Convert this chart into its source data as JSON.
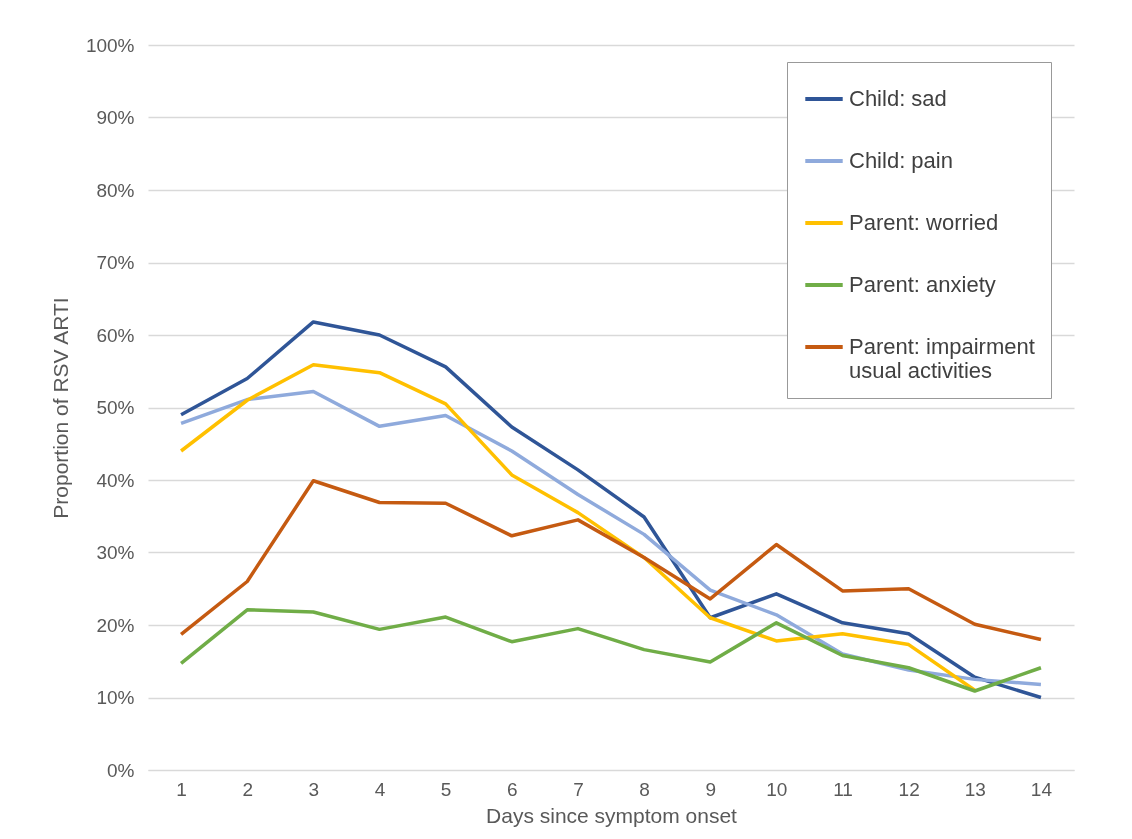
{
  "chart_data": {
    "type": "line",
    "xlabel": "Days since symptom onset",
    "ylabel": "Proportion of RSV ARTI",
    "x": [
      1,
      2,
      3,
      4,
      5,
      6,
      7,
      8,
      9,
      10,
      11,
      12,
      13,
      14
    ],
    "xlim": [
      0.5,
      14.5
    ],
    "xticks": [
      1,
      2,
      3,
      4,
      5,
      6,
      7,
      8,
      9,
      10,
      11,
      12,
      13,
      14
    ],
    "series": [
      {
        "name": "Child: sad",
        "color": "#2f5597",
        "values": [
          49,
          54,
          61.8,
          60,
          55.6,
          47.3,
          41.4,
          34.9,
          21,
          24.3,
          20.3,
          18.8,
          12.8,
          10
        ]
      },
      {
        "name": "Child: pain",
        "color": "#8faadc",
        "values": [
          47.8,
          51.1,
          52.2,
          47.4,
          48.9,
          44,
          38,
          32.5,
          24.8,
          21.4,
          16,
          13.8,
          12.5,
          11.8
        ]
      },
      {
        "name": "Parent: worried",
        "color": "#ffc000",
        "values": [
          44,
          51,
          55.9,
          54.8,
          50.5,
          40.7,
          35.5,
          29.3,
          21,
          17.8,
          18.8,
          17.3,
          11,
          null
        ]
      },
      {
        "name": "Parent: anxiety",
        "color": "#70ad47",
        "values": [
          14.7,
          22.1,
          21.8,
          19.4,
          21.1,
          17.7,
          19.5,
          16.6,
          14.9,
          20.3,
          15.8,
          14.1,
          10.9,
          14.1
        ]
      },
      {
        "name": "Parent: impairment\nusual activities",
        "color": "#c55a11",
        "values": [
          18.7,
          26,
          39.9,
          36.9,
          36.8,
          32.3,
          34.5,
          29.3,
          23.6,
          31.1,
          24.7,
          25,
          20.1,
          18
        ]
      }
    ],
    "ylim": [
      0,
      100
    ],
    "yticks": [
      {
        "value": 0,
        "label": "0%"
      },
      {
        "value": 10,
        "label": "10%"
      },
      {
        "value": 20,
        "label": "20%"
      },
      {
        "value": 30,
        "label": "30%"
      },
      {
        "value": 40,
        "label": "40%"
      },
      {
        "value": 50,
        "label": "50%"
      },
      {
        "value": 60,
        "label": "60%"
      },
      {
        "value": 70,
        "label": "70%"
      },
      {
        "value": 80,
        "label": "80%"
      },
      {
        "value": 90,
        "label": "90%"
      },
      {
        "value": 100,
        "label": "100%"
      }
    ],
    "grid": "y",
    "legend": "top right",
    "marker": "none",
    "line_style": "solid"
  }
}
